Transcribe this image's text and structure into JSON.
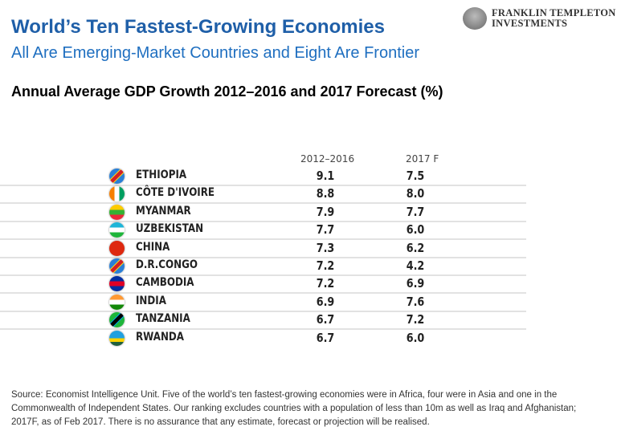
{
  "header": {
    "title": "World’s Ten Fastest-Growing Economies",
    "subtitle": "All Are Emerging-Market Countries and Eight Are Frontier",
    "logo_line1": "FRANKLIN TEMPLETON",
    "logo_line2": "INVESTMENTS"
  },
  "chart_data": {
    "type": "table",
    "title": "Annual Average GDP Growth 2012–2016 and 2017 Forecast (%)",
    "columns": [
      "2012–2016",
      "2017 F"
    ],
    "rows": [
      {
        "country": "ETHIOPIA",
        "v2012_2016": "9.1",
        "v2017f": "7.5",
        "flag": [
          "#2a7fd6",
          "#d21f26",
          "#f7d618"
        ]
      },
      {
        "country": "CÔTE D'IVOIRE",
        "v2012_2016": "8.8",
        "v2017f": "8.0",
        "flag": [
          "#f77f00",
          "#ffffff",
          "#009e60"
        ]
      },
      {
        "country": "MYANMAR",
        "v2012_2016": "7.9",
        "v2017f": "7.7",
        "flag": [
          "#fecb00",
          "#34b233",
          "#ea2839"
        ]
      },
      {
        "country": "UZBEKISTAN",
        "v2012_2016": "7.7",
        "v2017f": "6.0",
        "flag": [
          "#1eb5d8",
          "#ffffff",
          "#1eb53a"
        ]
      },
      {
        "country": "CHINA",
        "v2012_2016": "7.3",
        "v2017f": "6.2",
        "flag": [
          "#de2910",
          "#de2910",
          "#de2910"
        ]
      },
      {
        "country": "D.R.CONGO",
        "v2012_2016": "7.2",
        "v2017f": "4.2",
        "flag": [
          "#2a7fd6",
          "#d21f26",
          "#f7d618"
        ]
      },
      {
        "country": "CAMBODIA",
        "v2012_2016": "7.2",
        "v2017f": "6.9",
        "flag": [
          "#032ea1",
          "#e00025",
          "#032ea1"
        ]
      },
      {
        "country": "INDIA",
        "v2012_2016": "6.9",
        "v2017f": "7.6",
        "flag": [
          "#ff9933",
          "#ffffff",
          "#138808"
        ]
      },
      {
        "country": "TANZANIA",
        "v2012_2016": "6.7",
        "v2017f": "7.2",
        "flag": [
          "#1eb53a",
          "#000000",
          "#00a3dd"
        ]
      },
      {
        "country": "RWANDA",
        "v2012_2016": "6.7",
        "v2017f": "6.0",
        "flag": [
          "#20a0e0",
          "#fad201",
          "#20603d"
        ]
      }
    ]
  },
  "footer": {
    "source": "Source: Economist Intelligence Unit. Five of the world’s ten fastest-growing economies were in Africa, four were in Asia and one in the Commonwealth of Independent States. Our ranking excludes countries with a population of less than 10m as well as Iraq and Afghanistan; 2017F, as of Feb 2017. There is no assurance that any estimate, forecast or projection will be realised."
  }
}
